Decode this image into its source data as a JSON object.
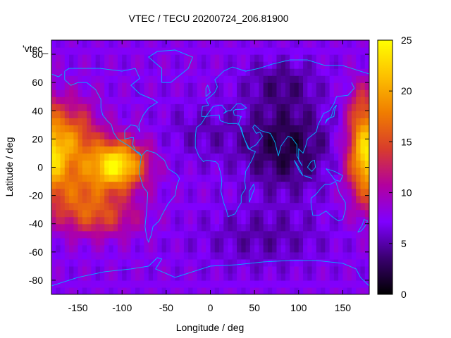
{
  "chart_data": {
    "type": "heatmap",
    "title": "VTEC / TECU 20200724_206.81900",
    "xlabel": "Longitude / deg",
    "ylabel": "Latitude / deg",
    "legend_key": "'vtec_",
    "xlim": [
      -180,
      180
    ],
    "ylim": [
      -90,
      90
    ],
    "xticks": [
      -150,
      -100,
      -50,
      0,
      50,
      100,
      150
    ],
    "yticks": [
      -80,
      -60,
      -40,
      -20,
      0,
      20,
      40,
      60,
      80
    ],
    "colorbar": {
      "range": [
        0,
        25
      ],
      "ticks": [
        0,
        5,
        10,
        15,
        20,
        25
      ],
      "palette": [
        "#000000",
        "#3a0070",
        "#7f00ff",
        "#b2009f",
        "#d83c2c",
        "#f07d00",
        "#fdc000",
        "#ffff00"
      ]
    },
    "grid": false,
    "background_value": 7.5,
    "features": [
      {
        "name": "equatorial-anomaly-americas",
        "lon": -105,
        "lat": 2,
        "peak_vtec": 24
      },
      {
        "name": "north-pacific-crest",
        "lon": -165,
        "lat": 25,
        "peak_vtec": 17
      },
      {
        "name": "south-pacific-crest",
        "lon": -140,
        "lat": -20,
        "peak_vtec": 15
      },
      {
        "name": "west-pacific-crest",
        "lon": 175,
        "lat": 5,
        "peak_vtec": 19
      },
      {
        "name": "asia-minimum",
        "lon": 85,
        "lat": 15,
        "peak_vtec": 2
      }
    ]
  }
}
